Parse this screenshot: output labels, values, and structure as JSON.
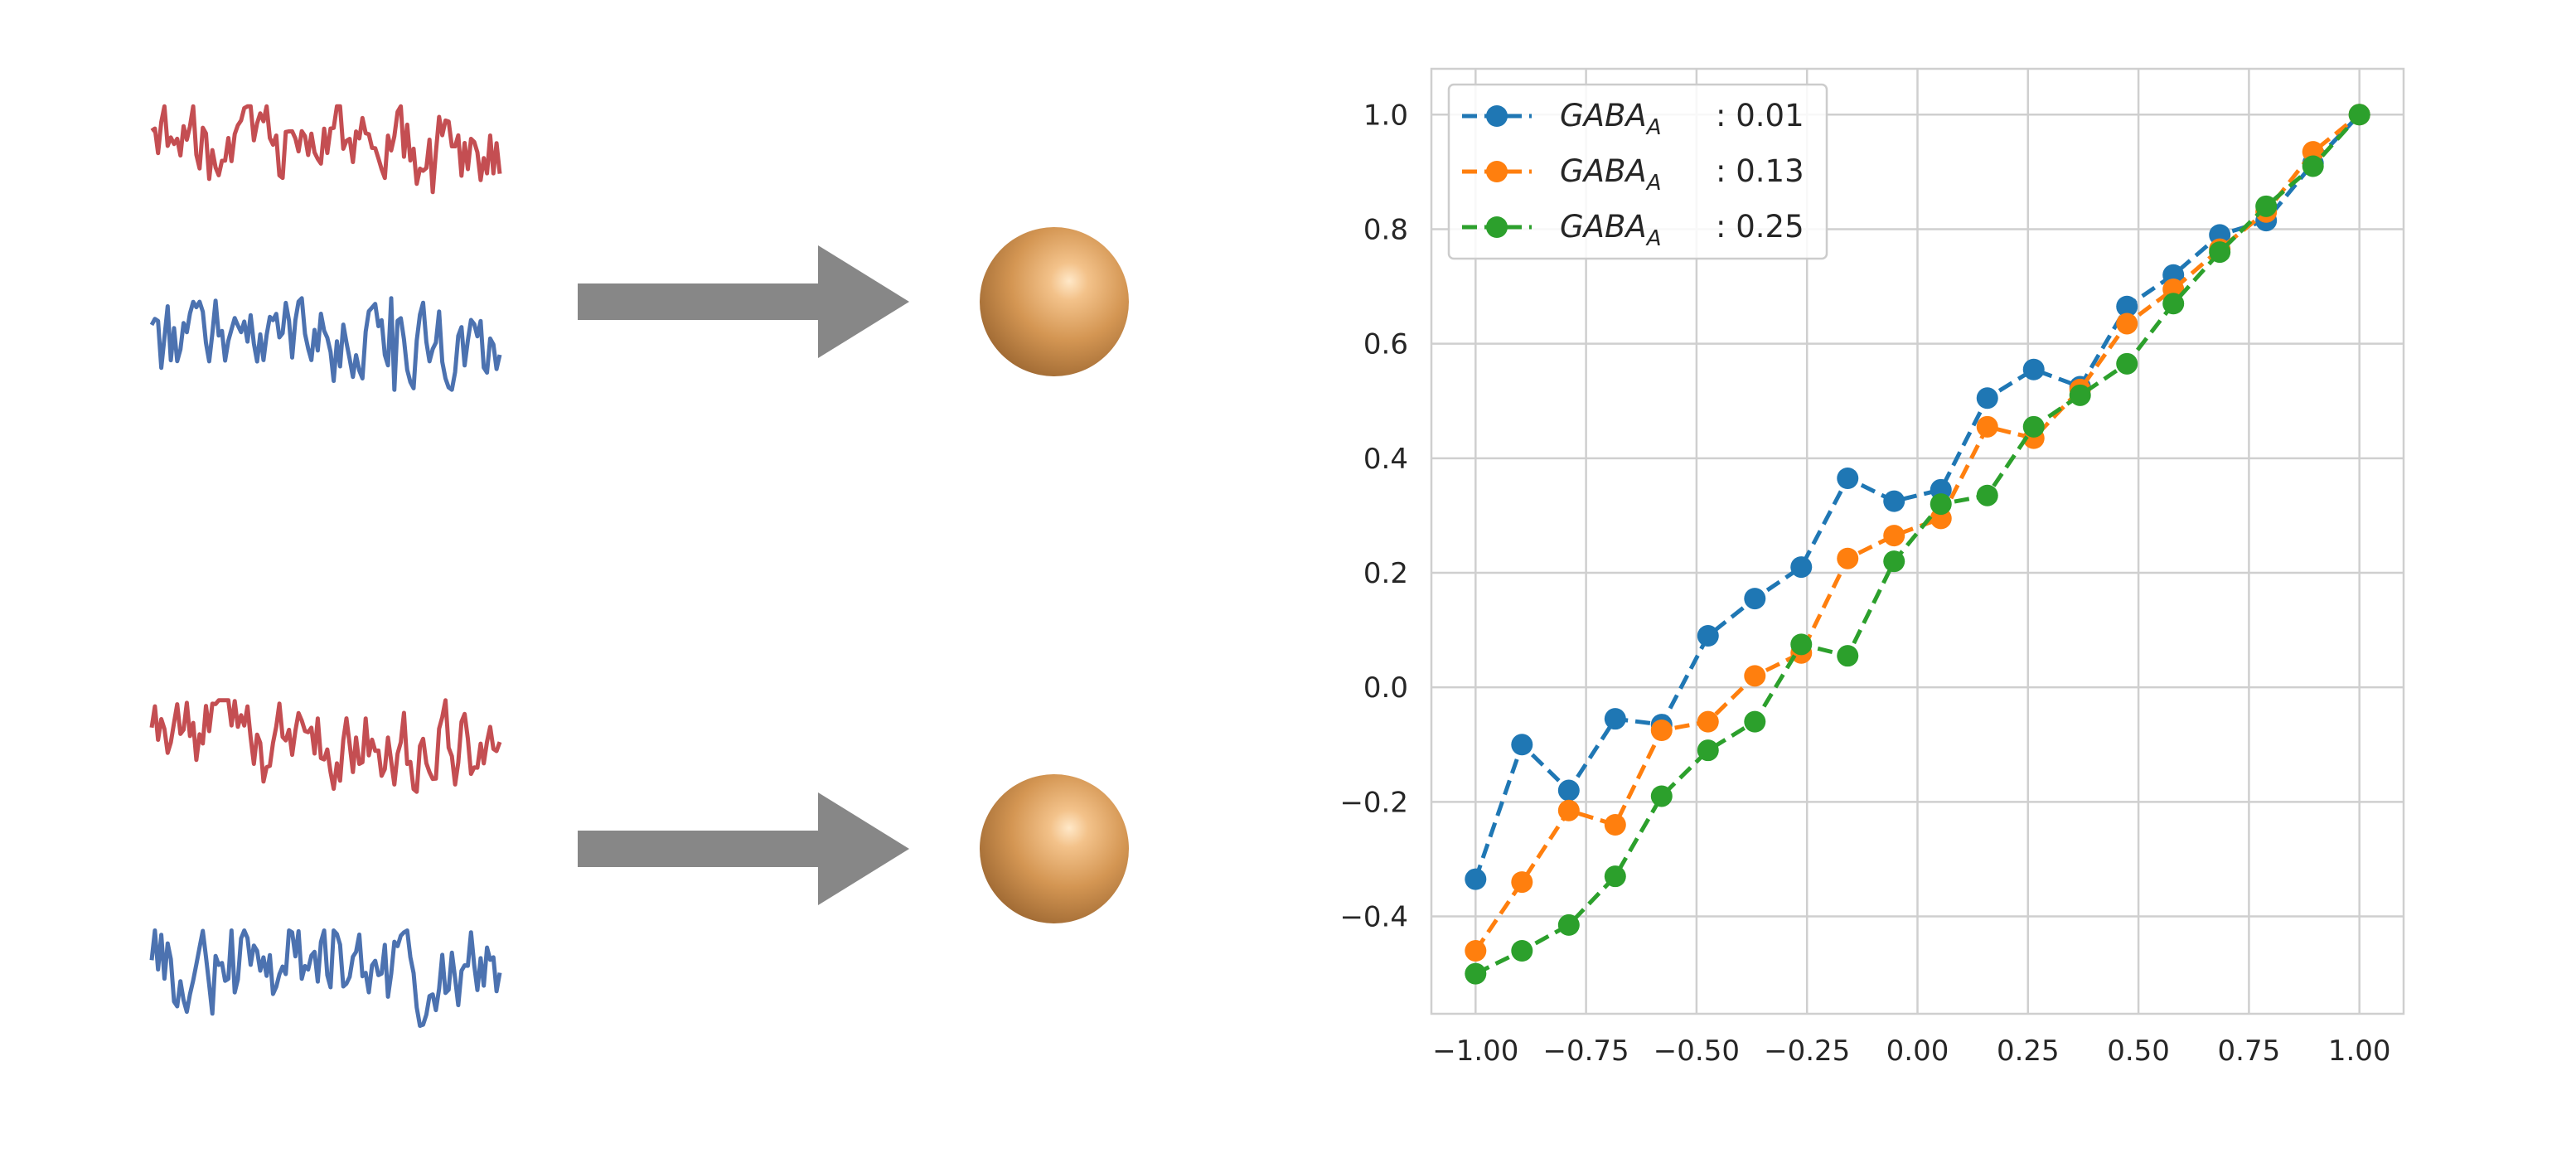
{
  "colors": {
    "red_trace": "#c44e52",
    "blue_trace": "#4c72b0",
    "arrow": "#878787",
    "sphere_base": "#c98c4a",
    "sphere_highlight": "#ffe6c4",
    "grid": "#cfcfcf",
    "axis_text": "#262626"
  },
  "icons": {
    "arrow": "right-arrow-icon",
    "neuron": "neuron-sphere-icon"
  },
  "chart_data": {
    "type": "line",
    "xlim": [
      -1.1,
      1.1
    ],
    "ylim": [
      -0.57,
      1.08
    ],
    "xticks": [
      -1.0,
      -0.75,
      -0.5,
      -0.25,
      0.0,
      0.25,
      0.5,
      0.75,
      1.0
    ],
    "xtick_labels": [
      "−1.00",
      "−0.75",
      "−0.50",
      "−0.25",
      "0.00",
      "0.25",
      "0.50",
      "0.75",
      "1.00"
    ],
    "yticks": [
      -0.4,
      -0.2,
      0.0,
      0.2,
      0.4,
      0.6,
      0.8,
      1.0
    ],
    "ytick_labels": [
      "−0.4",
      "−0.2",
      "0.0",
      "0.2",
      "0.4",
      "0.6",
      "0.8",
      "1.0"
    ],
    "grid": true,
    "legend_position": "top-left",
    "x": [
      -1.0,
      -0.895,
      -0.789,
      -0.684,
      -0.579,
      -0.474,
      -0.368,
      -0.263,
      -0.158,
      -0.053,
      0.053,
      0.158,
      0.263,
      0.368,
      0.474,
      0.579,
      0.684,
      0.789,
      0.895,
      1.0
    ],
    "series": [
      {
        "name": "GABA_A",
        "name_main": "GABA",
        "name_sub": "A",
        "value_label": ": 0.01",
        "color": "#1f77b4",
        "values": [
          -0.335,
          -0.1,
          -0.18,
          -0.055,
          -0.065,
          0.09,
          0.155,
          0.21,
          0.365,
          0.325,
          0.345,
          0.505,
          0.555,
          0.525,
          0.665,
          0.72,
          0.79,
          0.815,
          0.915,
          1.0
        ]
      },
      {
        "name": "GABA_A",
        "name_main": "GABA",
        "name_sub": "A",
        "value_label": ": 0.13",
        "color": "#ff7f0e",
        "values": [
          -0.46,
          -0.34,
          -0.215,
          -0.24,
          -0.075,
          -0.06,
          0.02,
          0.06,
          0.225,
          0.265,
          0.295,
          0.455,
          0.435,
          0.52,
          0.635,
          0.695,
          0.765,
          0.83,
          0.935,
          1.0
        ]
      },
      {
        "name": "GABA_A",
        "name_main": "GABA",
        "name_sub": "A",
        "value_label": ": 0.25",
        "color": "#2ca02c",
        "values": [
          -0.5,
          -0.46,
          -0.415,
          -0.33,
          -0.19,
          -0.11,
          -0.06,
          0.075,
          0.055,
          0.22,
          0.32,
          0.335,
          0.455,
          0.51,
          0.565,
          0.67,
          0.76,
          0.84,
          0.91,
          1.0
        ]
      }
    ]
  }
}
